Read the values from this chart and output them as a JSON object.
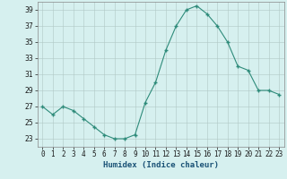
{
  "x": [
    0,
    1,
    2,
    3,
    4,
    5,
    6,
    7,
    8,
    9,
    10,
    11,
    12,
    13,
    14,
    15,
    16,
    17,
    18,
    19,
    20,
    21,
    22,
    23
  ],
  "y": [
    27,
    26,
    27,
    26.5,
    25.5,
    24.5,
    23.5,
    23,
    23,
    23.5,
    27.5,
    30,
    34,
    37,
    39,
    39.5,
    38.5,
    37,
    35,
    32,
    31.5,
    29,
    29,
    28.5
  ],
  "line_color": "#2e8b7a",
  "marker_color": "#2e8b7a",
  "bg_color": "#d6f0ef",
  "grid_color": "#b0c8c5",
  "xlabel": "Humidex (Indice chaleur)",
  "xlabel_color": "#1a5276",
  "ylim": [
    22,
    40
  ],
  "xlim": [
    -0.5,
    23.5
  ],
  "yticks": [
    23,
    25,
    27,
    29,
    31,
    33,
    35,
    37,
    39
  ],
  "xticks": [
    0,
    1,
    2,
    3,
    4,
    5,
    6,
    7,
    8,
    9,
    10,
    11,
    12,
    13,
    14,
    15,
    16,
    17,
    18,
    19,
    20,
    21,
    22,
    23
  ],
  "tick_fontsize": 5.5,
  "xlabel_fontsize": 6.5
}
